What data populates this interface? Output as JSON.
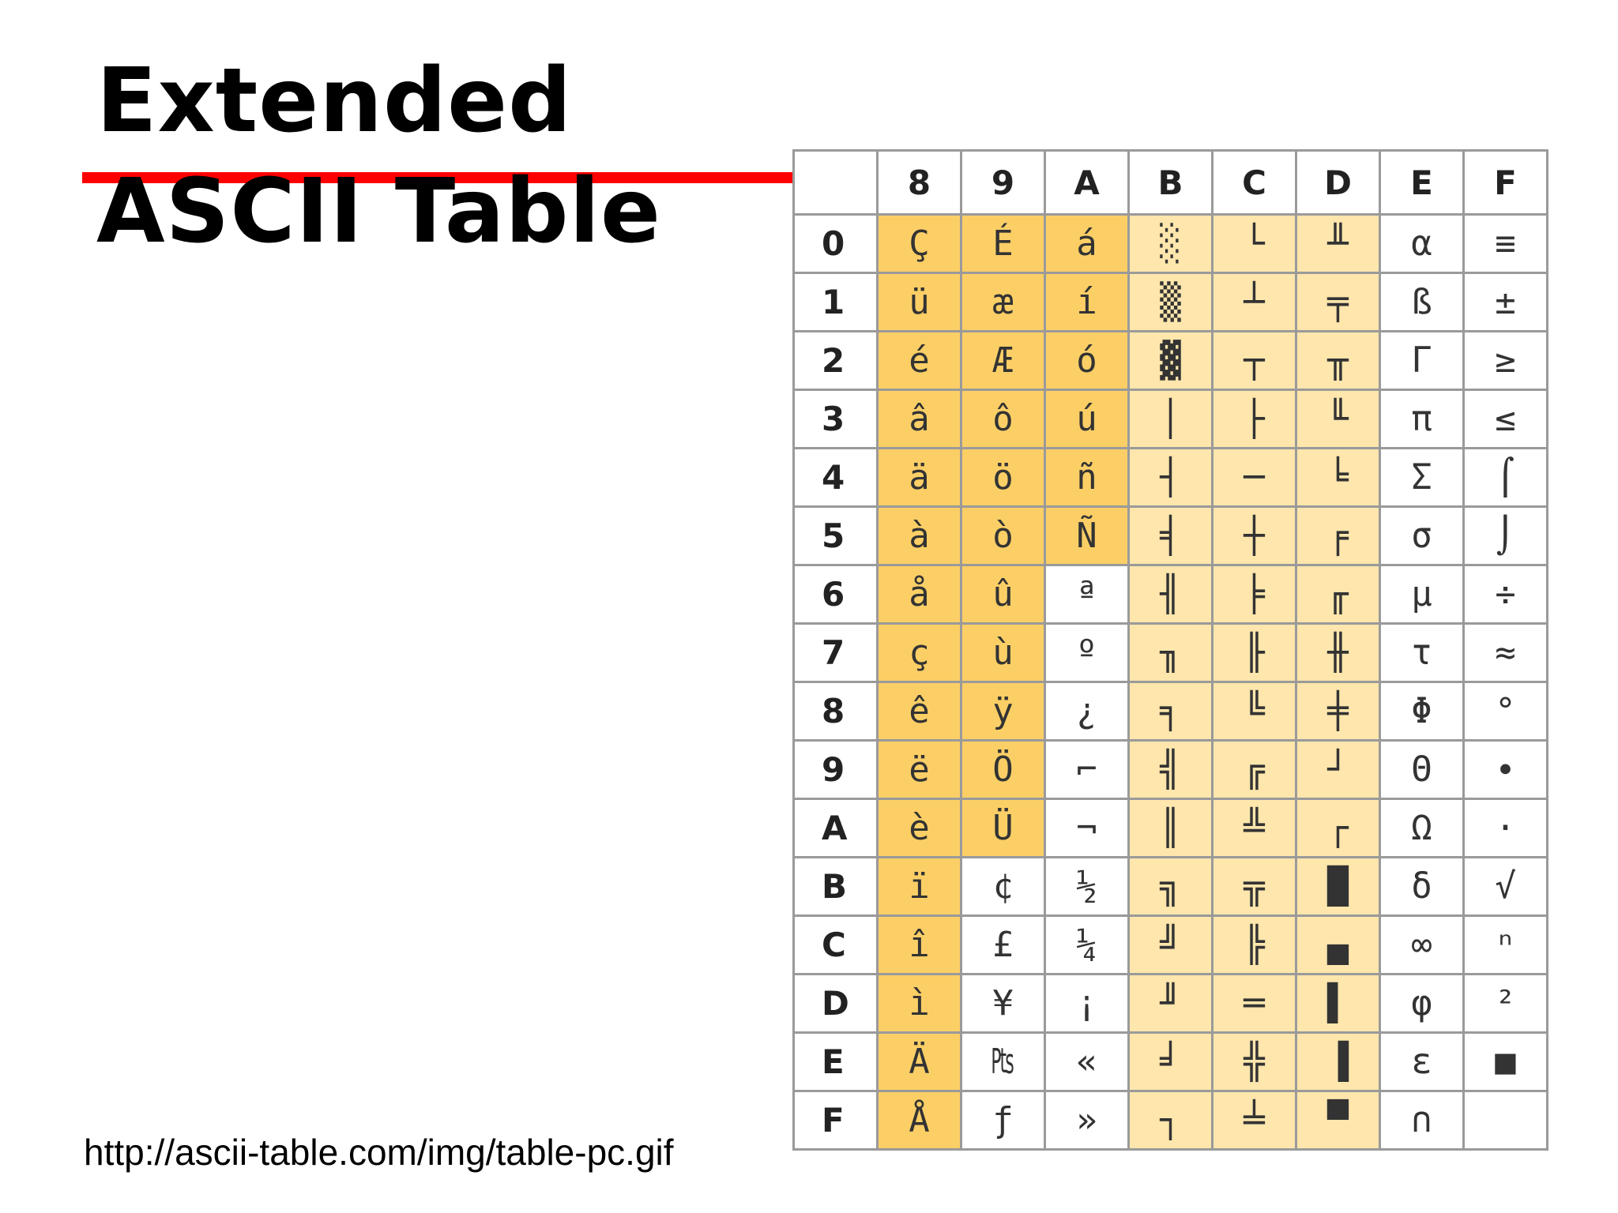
{
  "slide": {
    "title_line1": "Extended",
    "title_line2": "ASCII Table",
    "source_url": "http://ascii-table.com/img/table-pc.gif",
    "accent_color": "#ff0000"
  },
  "table": {
    "columns": [
      "8",
      "9",
      "A",
      "B",
      "C",
      "D",
      "E",
      "F"
    ],
    "colors": {
      "strong": "#fccf66",
      "light": "#fee6ac",
      "none": "#ffffff"
    },
    "rows": [
      {
        "label": "0",
        "cells": [
          "Ç",
          "É",
          "á",
          "░",
          "└",
          "╨",
          "α",
          "≡"
        ],
        "shade": [
          "strong",
          "strong",
          "strong",
          "light",
          "light",
          "light",
          "none",
          "none"
        ]
      },
      {
        "label": "1",
        "cells": [
          "ü",
          "æ",
          "í",
          "▒",
          "┴",
          "╤",
          "ß",
          "±"
        ],
        "shade": [
          "strong",
          "strong",
          "strong",
          "light",
          "light",
          "light",
          "none",
          "none"
        ]
      },
      {
        "label": "2",
        "cells": [
          "é",
          "Æ",
          "ó",
          "▓",
          "┬",
          "╥",
          "Γ",
          "≥"
        ],
        "shade": [
          "strong",
          "strong",
          "strong",
          "light",
          "light",
          "light",
          "none",
          "none"
        ]
      },
      {
        "label": "3",
        "cells": [
          "â",
          "ô",
          "ú",
          "│",
          "├",
          "╙",
          "π",
          "≤"
        ],
        "shade": [
          "strong",
          "strong",
          "strong",
          "light",
          "light",
          "light",
          "none",
          "none"
        ]
      },
      {
        "label": "4",
        "cells": [
          "ä",
          "ö",
          "ñ",
          "┤",
          "─",
          "╘",
          "Σ",
          "⌠"
        ],
        "shade": [
          "strong",
          "strong",
          "strong",
          "light",
          "light",
          "light",
          "none",
          "none"
        ]
      },
      {
        "label": "5",
        "cells": [
          "à",
          "ò",
          "Ñ",
          "╡",
          "┼",
          "╒",
          "σ",
          "⌡"
        ],
        "shade": [
          "strong",
          "strong",
          "strong",
          "light",
          "light",
          "light",
          "none",
          "none"
        ]
      },
      {
        "label": "6",
        "cells": [
          "å",
          "û",
          "ª",
          "╢",
          "╞",
          "╓",
          "µ",
          "÷"
        ],
        "shade": [
          "strong",
          "strong",
          "none",
          "light",
          "light",
          "light",
          "none",
          "none"
        ]
      },
      {
        "label": "7",
        "cells": [
          "ç",
          "ù",
          "º",
          "╖",
          "╟",
          "╫",
          "τ",
          "≈"
        ],
        "shade": [
          "strong",
          "strong",
          "none",
          "light",
          "light",
          "light",
          "none",
          "none"
        ]
      },
      {
        "label": "8",
        "cells": [
          "ê",
          "ÿ",
          "¿",
          "╕",
          "╚",
          "╪",
          "Φ",
          "°"
        ],
        "shade": [
          "strong",
          "strong",
          "none",
          "light",
          "light",
          "light",
          "none",
          "none"
        ]
      },
      {
        "label": "9",
        "cells": [
          "ë",
          "Ö",
          "⌐",
          "╣",
          "╔",
          "┘",
          "Θ",
          "∙"
        ],
        "shade": [
          "strong",
          "strong",
          "none",
          "light",
          "light",
          "light",
          "none",
          "none"
        ]
      },
      {
        "label": "A",
        "cells": [
          "è",
          "Ü",
          "¬",
          "║",
          "╩",
          "┌",
          "Ω",
          "·"
        ],
        "shade": [
          "strong",
          "strong",
          "none",
          "light",
          "light",
          "light",
          "none",
          "none"
        ]
      },
      {
        "label": "B",
        "cells": [
          "ï",
          "¢",
          "½",
          "╗",
          "╦",
          "█",
          "δ",
          "√"
        ],
        "shade": [
          "strong",
          "none",
          "none",
          "light",
          "light",
          "light",
          "none",
          "none"
        ]
      },
      {
        "label": "C",
        "cells": [
          "î",
          "£",
          "¼",
          "╝",
          "╠",
          "▄",
          "∞",
          "ⁿ"
        ],
        "shade": [
          "strong",
          "none",
          "none",
          "light",
          "light",
          "light",
          "none",
          "none"
        ]
      },
      {
        "label": "D",
        "cells": [
          "ì",
          "¥",
          "¡",
          "╜",
          "═",
          "▌",
          "φ",
          "²"
        ],
        "shade": [
          "strong",
          "none",
          "none",
          "light",
          "light",
          "light",
          "none",
          "none"
        ]
      },
      {
        "label": "E",
        "cells": [
          "Ä",
          "₧",
          "«",
          "╛",
          "╬",
          "▐",
          "ε",
          "■"
        ],
        "shade": [
          "strong",
          "none",
          "none",
          "light",
          "light",
          "light",
          "none",
          "none"
        ]
      },
      {
        "label": "F",
        "cells": [
          "Å",
          "ƒ",
          "»",
          "┐",
          "╧",
          "▀",
          "∩",
          ""
        ],
        "shade": [
          "strong",
          "none",
          "none",
          "light",
          "light",
          "light",
          "none",
          "none"
        ]
      }
    ]
  }
}
